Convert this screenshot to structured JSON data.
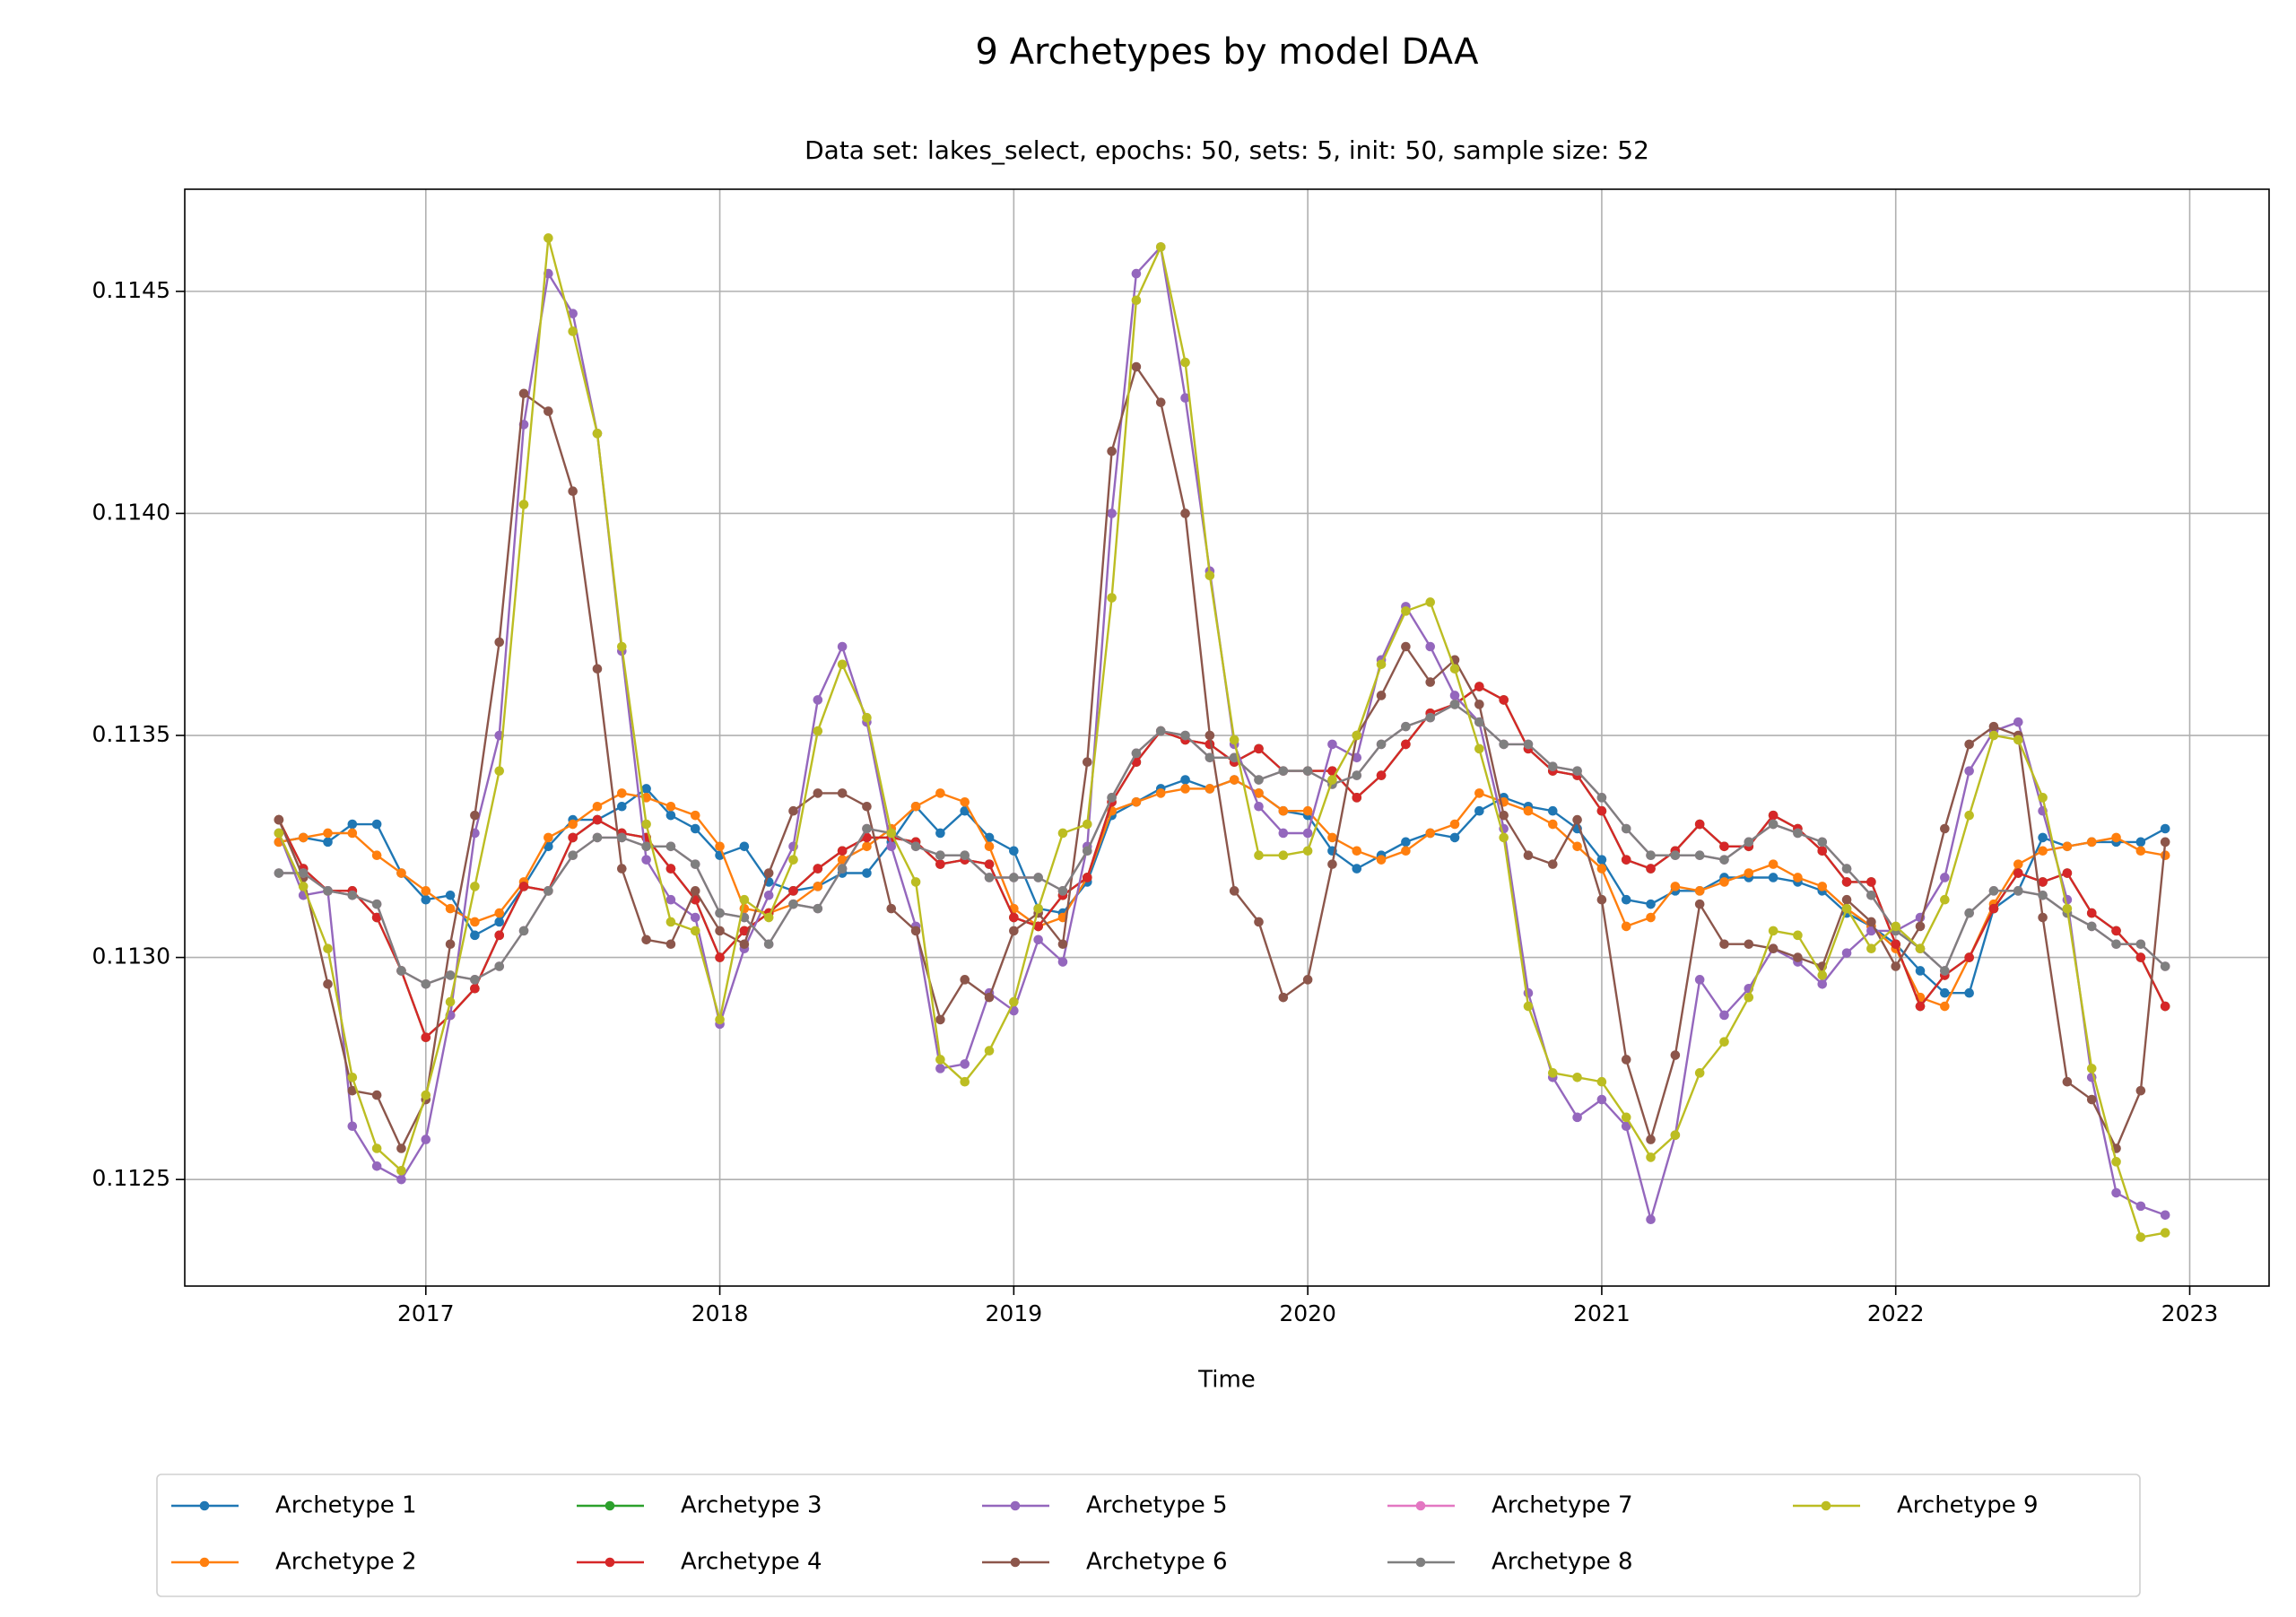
{
  "chart_data": {
    "type": "line",
    "title": "9 Archetypes by model DAA",
    "subtitle": "Data set: lakes_select, epochs: 50, sets: 5, init: 50, sample size: 52",
    "x_label": "Time",
    "x": [
      "2016-07",
      "2016-08",
      "2016-09",
      "2016-10",
      "2016-11",
      "2016-12",
      "2017-01",
      "2017-02",
      "2017-03",
      "2017-04",
      "2017-05",
      "2017-06",
      "2017-07",
      "2017-08",
      "2017-09",
      "2017-10",
      "2017-11",
      "2017-12",
      "2018-01",
      "2018-02",
      "2018-03",
      "2018-04",
      "2018-05",
      "2018-06",
      "2018-07",
      "2018-08",
      "2018-09",
      "2018-10",
      "2018-11",
      "2018-12",
      "2019-01",
      "2019-02",
      "2019-03",
      "2019-04",
      "2019-05",
      "2019-06",
      "2019-07",
      "2019-08",
      "2019-09",
      "2019-10",
      "2019-11",
      "2019-12",
      "2020-01",
      "2020-02",
      "2020-03",
      "2020-04",
      "2020-05",
      "2020-06",
      "2020-07",
      "2020-08",
      "2020-09",
      "2020-10",
      "2020-11",
      "2020-12",
      "2021-01",
      "2021-02",
      "2021-03",
      "2021-04",
      "2021-05",
      "2021-06",
      "2021-07",
      "2021-08",
      "2021-09",
      "2021-10",
      "2021-11",
      "2021-12",
      "2022-01",
      "2022-02",
      "2022-03",
      "2022-04",
      "2022-05",
      "2022-06",
      "2022-07",
      "2022-08",
      "2022-09",
      "2022-10",
      "2022-11",
      "2022-12"
    ],
    "xlim": [
      2016.18,
      2023.27
    ],
    "xticks": [
      2017,
      2018,
      2019,
      2020,
      2021,
      2022,
      2023
    ],
    "ylim": [
      0.11226,
      0.11473
    ],
    "yticks": [
      {
        "value": 0.1125,
        "label": "0.1125"
      },
      {
        "value": 0.113,
        "label": "0.1130"
      },
      {
        "value": 0.1135,
        "label": "0.1135"
      },
      {
        "value": 0.114,
        "label": "0.1140"
      },
      {
        "value": 0.1145,
        "label": "0.1145"
      }
    ],
    "grid": true,
    "legend": "lower center",
    "series": [
      {
        "name": "Archetype 1",
        "color": "#1f77b4",
        "values": [
          0.11326,
          0.11327,
          0.11326,
          0.1133,
          0.1133,
          0.11319,
          0.11313,
          0.11314,
          0.11305,
          0.11308,
          0.11316,
          0.11325,
          0.11331,
          0.11331,
          0.11334,
          0.11338,
          0.11332,
          0.11329,
          0.11323,
          0.11325,
          0.11317,
          0.11315,
          0.11316,
          0.11319,
          0.11319,
          0.11326,
          0.11334,
          0.11328,
          0.11333,
          0.11327,
          0.11324,
          0.11311,
          0.1131,
          0.11317,
          0.11332,
          0.11335,
          0.11338,
          0.1134,
          0.11338,
          0.1134,
          0.11337,
          0.11333,
          0.11332,
          0.11324,
          0.1132,
          0.11323,
          0.11326,
          0.11328,
          0.11327,
          0.11333,
          0.11336,
          0.11334,
          0.11333,
          0.11329,
          0.11322,
          0.11313,
          0.11312,
          0.11315,
          0.11315,
          0.11318,
          0.11318,
          0.11318,
          0.11317,
          0.11315,
          0.1131,
          0.11307,
          0.11303,
          0.11297,
          0.11292,
          0.11292,
          0.11311,
          0.11315,
          0.11327,
          0.11325,
          0.11326,
          0.11326,
          0.11326,
          0.11329
        ]
      },
      {
        "name": "Archetype 2",
        "color": "#ff7f0e",
        "values": [
          0.11326,
          0.11327,
          0.11328,
          0.11328,
          0.11323,
          0.11319,
          0.11315,
          0.11311,
          0.11308,
          0.1131,
          0.11317,
          0.11327,
          0.1133,
          0.11334,
          0.11337,
          0.11336,
          0.11334,
          0.11332,
          0.11325,
          0.11311,
          0.1131,
          0.11312,
          0.11316,
          0.11322,
          0.11325,
          0.11329,
          0.11334,
          0.11337,
          0.11335,
          0.11325,
          0.11311,
          0.11307,
          0.11309,
          0.11318,
          0.11333,
          0.11335,
          0.11337,
          0.11338,
          0.11338,
          0.1134,
          0.11337,
          0.11333,
          0.11333,
          0.11327,
          0.11324,
          0.11322,
          0.11324,
          0.11328,
          0.1133,
          0.11337,
          0.11335,
          0.11333,
          0.1133,
          0.11325,
          0.1132,
          0.11307,
          0.11309,
          0.11316,
          0.11315,
          0.11317,
          0.11319,
          0.11321,
          0.11318,
          0.11316,
          0.11311,
          0.11307,
          0.11302,
          0.11291,
          0.11289,
          0.113,
          0.11312,
          0.11321,
          0.11324,
          0.11325,
          0.11326,
          0.11327,
          0.11324,
          0.11323
        ]
      },
      {
        "name": "Archetype 3",
        "color": "#2ca02c",
        "values": [
          0.11331,
          0.1132,
          0.11315,
          0.11315,
          0.11309,
          0.11297,
          0.11282,
          0.11287,
          0.11293,
          0.11305,
          0.11316,
          0.11315,
          0.11327,
          0.11331,
          0.11328,
          0.11327,
          0.1132,
          0.11313,
          0.113,
          0.11306,
          0.1131,
          0.11315,
          0.1132,
          0.11324,
          0.11327,
          0.11327,
          0.11326,
          0.11321,
          0.11322,
          0.11321,
          0.11309,
          0.11307,
          0.11314,
          0.11318,
          0.11335,
          0.11344,
          0.11351,
          0.11349,
          0.11348,
          0.11344,
          0.11347,
          0.11342,
          0.11342,
          0.11342,
          0.11336,
          0.11341,
          0.11348,
          0.11355,
          0.11357,
          0.11361,
          0.11358,
          0.11347,
          0.11342,
          0.11341,
          0.11333,
          0.11322,
          0.1132,
          0.11324,
          0.1133,
          0.11325,
          0.11325,
          0.11332,
          0.11329,
          0.11324,
          0.11317,
          0.11317,
          0.11303,
          0.11289,
          0.11296,
          0.113,
          0.11311,
          0.11319,
          0.11317,
          0.11319,
          0.1131,
          0.11306,
          0.113,
          0.11289
        ]
      },
      {
        "name": "Archetype 4",
        "color": "#d62728",
        "values": [
          0.11331,
          0.1132,
          0.11315,
          0.11315,
          0.11309,
          0.11297,
          0.11282,
          0.11287,
          0.11293,
          0.11305,
          0.11316,
          0.11315,
          0.11327,
          0.11331,
          0.11328,
          0.11327,
          0.1132,
          0.11313,
          0.113,
          0.11306,
          0.1131,
          0.11315,
          0.1132,
          0.11324,
          0.11327,
          0.11327,
          0.11326,
          0.11321,
          0.11322,
          0.11321,
          0.11309,
          0.11307,
          0.11314,
          0.11318,
          0.11335,
          0.11344,
          0.11351,
          0.11349,
          0.11348,
          0.11344,
          0.11347,
          0.11342,
          0.11342,
          0.11342,
          0.11336,
          0.11341,
          0.11348,
          0.11355,
          0.11357,
          0.11361,
          0.11358,
          0.11347,
          0.11342,
          0.11341,
          0.11333,
          0.11322,
          0.1132,
          0.11324,
          0.1133,
          0.11325,
          0.11325,
          0.11332,
          0.11329,
          0.11324,
          0.11317,
          0.11317,
          0.11303,
          0.11289,
          0.11296,
          0.113,
          0.11311,
          0.11319,
          0.11317,
          0.11319,
          0.1131,
          0.11306,
          0.113,
          0.11289
        ]
      },
      {
        "name": "Archetype 5",
        "color": "#9467bd",
        "values": [
          0.11328,
          0.11314,
          0.11315,
          0.11262,
          0.11253,
          0.1125,
          0.11259,
          0.11287,
          0.11328,
          0.1135,
          0.1142,
          0.11454,
          0.11445,
          0.11418,
          0.11369,
          0.11322,
          0.11313,
          0.11309,
          0.11285,
          0.11302,
          0.11314,
          0.11325,
          0.11358,
          0.1137,
          0.11353,
          0.11325,
          0.11307,
          0.11275,
          0.11276,
          0.11292,
          0.11288,
          0.11304,
          0.11299,
          0.11325,
          0.114,
          0.11454,
          0.1146,
          0.11426,
          0.11387,
          0.11348,
          0.11334,
          0.11328,
          0.11328,
          0.11348,
          0.11345,
          0.11367,
          0.11379,
          0.1137,
          0.11359,
          0.11353,
          0.11329,
          0.11292,
          0.11273,
          0.11264,
          0.11268,
          0.11262,
          0.11241,
          0.1126,
          0.11295,
          0.11287,
          0.11293,
          0.11302,
          0.11299,
          0.11294,
          0.11301,
          0.11306,
          0.11306,
          0.11309,
          0.11318,
          0.11342,
          0.11351,
          0.11353,
          0.11333,
          0.11313,
          0.11273,
          0.11247,
          0.11244,
          0.11242
        ]
      },
      {
        "name": "Archetype 6",
        "color": "#8c564b",
        "values": [
          0.11331,
          0.11318,
          0.11294,
          0.1127,
          0.11269,
          0.11257,
          0.11268,
          0.11303,
          0.11332,
          0.11371,
          0.11427,
          0.11423,
          0.11405,
          0.11365,
          0.1132,
          0.11304,
          0.11303,
          0.11315,
          0.11306,
          0.11303,
          0.11319,
          0.11333,
          0.11337,
          0.11337,
          0.11334,
          0.11311,
          0.11306,
          0.11286,
          0.11295,
          0.11291,
          0.11306,
          0.1131,
          0.11303,
          0.11344,
          0.11414,
          0.11433,
          0.11425,
          0.114,
          0.1135,
          0.11315,
          0.11308,
          0.11291,
          0.11295,
          0.11321,
          0.1135,
          0.11359,
          0.1137,
          0.11362,
          0.11367,
          0.11357,
          0.11332,
          0.11323,
          0.11321,
          0.11331,
          0.11313,
          0.11277,
          0.11259,
          0.11278,
          0.11312,
          0.11303,
          0.11303,
          0.11302,
          0.113,
          0.11298,
          0.11313,
          0.11308,
          0.11298,
          0.11307,
          0.11329,
          0.11348,
          0.11352,
          0.1135,
          0.11309,
          0.11272,
          0.11268,
          0.11257,
          0.1127,
          0.11326
        ]
      },
      {
        "name": "Archetype 7",
        "color": "#e377c2",
        "values": [
          0.11319,
          0.11319,
          0.11315,
          0.11314,
          0.11312,
          0.11297,
          0.11294,
          0.11296,
          0.11295,
          0.11298,
          0.11306,
          0.11315,
          0.11323,
          0.11327,
          0.11327,
          0.11325,
          0.11325,
          0.11321,
          0.1131,
          0.11309,
          0.11303,
          0.11312,
          0.11311,
          0.1132,
          0.11329,
          0.11328,
          0.11325,
          0.11323,
          0.11323,
          0.11318,
          0.11318,
          0.11318,
          0.11315,
          0.11324,
          0.11336,
          0.11346,
          0.11351,
          0.1135,
          0.11345,
          0.11345,
          0.1134,
          0.11342,
          0.11342,
          0.11339,
          0.11341,
          0.11348,
          0.11352,
          0.11354,
          0.11357,
          0.11353,
          0.11348,
          0.11348,
          0.11343,
          0.11342,
          0.11336,
          0.11329,
          0.11323,
          0.11323,
          0.11323,
          0.11322,
          0.11326,
          0.1133,
          0.11328,
          0.11326,
          0.1132,
          0.11314,
          0.11306,
          0.11302,
          0.11297,
          0.1131,
          0.11315,
          0.11315,
          0.11314,
          0.1131,
          0.11307,
          0.11303,
          0.11303,
          0.11298
        ]
      },
      {
        "name": "Archetype 8",
        "color": "#7f7f7f",
        "values": [
          0.11319,
          0.11319,
          0.11315,
          0.11314,
          0.11312,
          0.11297,
          0.11294,
          0.11296,
          0.11295,
          0.11298,
          0.11306,
          0.11315,
          0.11323,
          0.11327,
          0.11327,
          0.11325,
          0.11325,
          0.11321,
          0.1131,
          0.11309,
          0.11303,
          0.11312,
          0.11311,
          0.1132,
          0.11329,
          0.11328,
          0.11325,
          0.11323,
          0.11323,
          0.11318,
          0.11318,
          0.11318,
          0.11315,
          0.11324,
          0.11336,
          0.11346,
          0.11351,
          0.1135,
          0.11345,
          0.11345,
          0.1134,
          0.11342,
          0.11342,
          0.11339,
          0.11341,
          0.11348,
          0.11352,
          0.11354,
          0.11357,
          0.11353,
          0.11348,
          0.11348,
          0.11343,
          0.11342,
          0.11336,
          0.11329,
          0.11323,
          0.11323,
          0.11323,
          0.11322,
          0.11326,
          0.1133,
          0.11328,
          0.11326,
          0.1132,
          0.11314,
          0.11306,
          0.11302,
          0.11297,
          0.1131,
          0.11315,
          0.11315,
          0.11314,
          0.1131,
          0.11307,
          0.11303,
          0.11303,
          0.11298
        ]
      },
      {
        "name": "Archetype 9",
        "color": "#bcbd22",
        "values": [
          0.11328,
          0.11316,
          0.11302,
          0.11273,
          0.11257,
          0.11252,
          0.11269,
          0.1129,
          0.11316,
          0.11342,
          0.11402,
          0.11462,
          0.11441,
          0.11418,
          0.1137,
          0.1133,
          0.11308,
          0.11306,
          0.11286,
          0.11313,
          0.11309,
          0.11322,
          0.11351,
          0.11366,
          0.11354,
          0.11328,
          0.11317,
          0.11277,
          0.11272,
          0.11279,
          0.1129,
          0.11311,
          0.11328,
          0.1133,
          0.11381,
          0.11448,
          0.1146,
          0.11434,
          0.11386,
          0.11349,
          0.11323,
          0.11323,
          0.11324,
          0.1134,
          0.1135,
          0.11366,
          0.11378,
          0.1138,
          0.11365,
          0.11347,
          0.11327,
          0.11289,
          0.11274,
          0.11273,
          0.11272,
          0.11264,
          0.11255,
          0.1126,
          0.11274,
          0.11281,
          0.11291,
          0.11306,
          0.11305,
          0.11296,
          0.11311,
          0.11302,
          0.11307,
          0.11302,
          0.11313,
          0.11332,
          0.1135,
          0.11349,
          0.11336,
          0.11311,
          0.11275,
          0.11254,
          0.11237,
          0.11238
        ]
      }
    ]
  }
}
